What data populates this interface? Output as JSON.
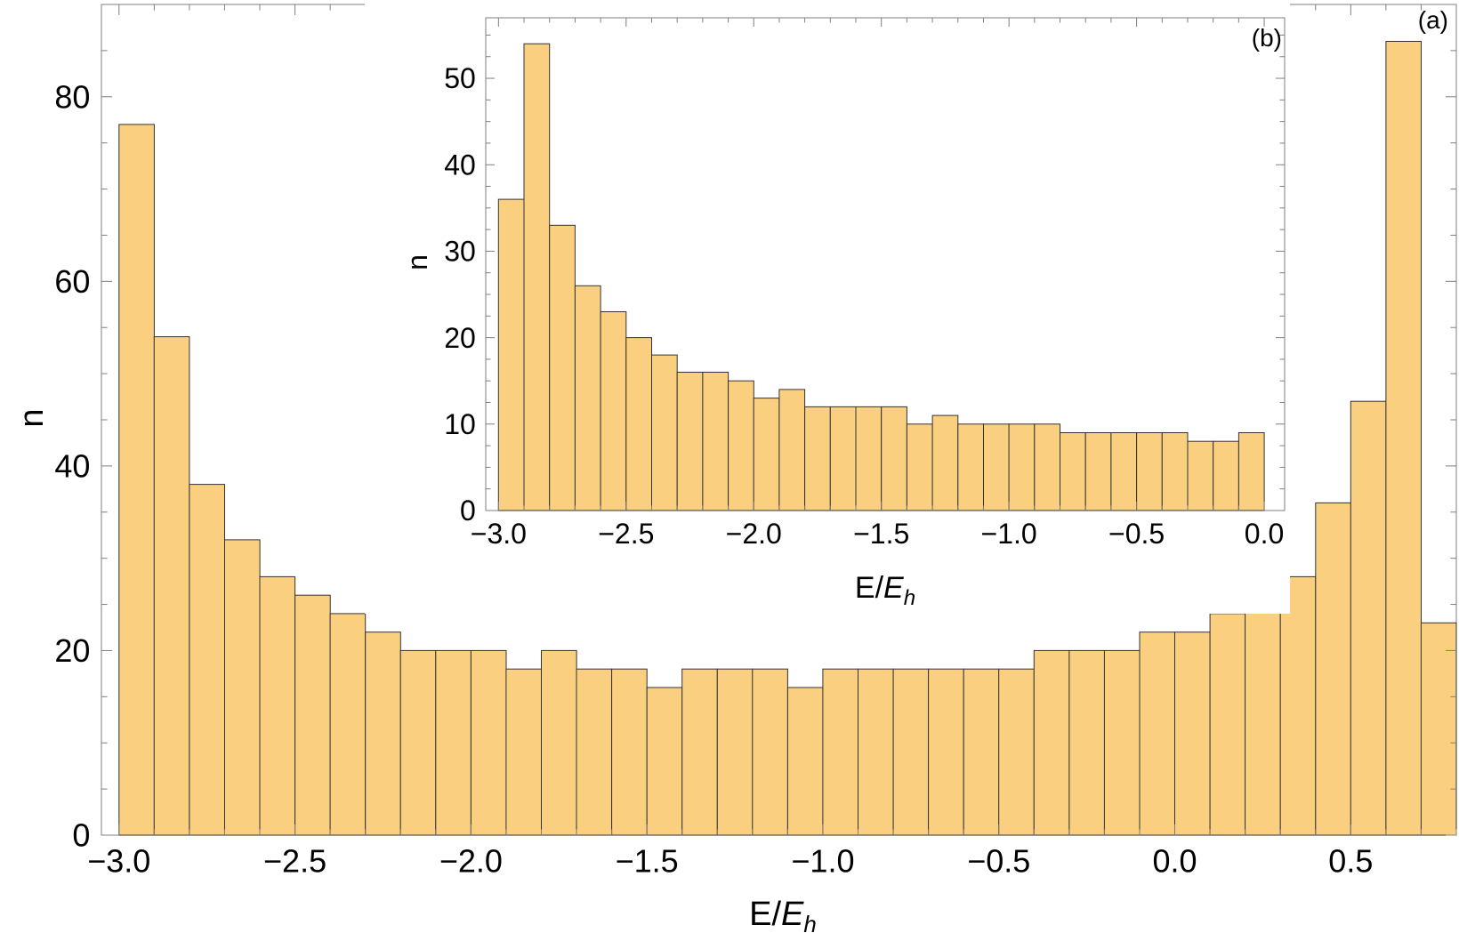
{
  "chart_data": [
    {
      "panel": "(a)",
      "type": "bar",
      "bin_width": 0.1,
      "x_bin_starts": [
        -3.0,
        -2.9,
        -2.8,
        -2.7,
        -2.6,
        -2.5,
        -2.4,
        -2.3,
        -2.2,
        -2.1,
        -2.0,
        -1.9,
        -1.8,
        -1.7,
        -1.6,
        -1.5,
        -1.4,
        -1.3,
        -1.2,
        -1.1,
        -1.0,
        -0.9,
        -0.8,
        -0.7,
        -0.6,
        -0.5,
        -0.4,
        -0.3,
        -0.2,
        -0.1,
        0.0,
        0.1,
        0.2,
        0.3,
        0.4,
        0.5,
        0.6,
        0.7
      ],
      "values": [
        77,
        54,
        38,
        32,
        28,
        26,
        24,
        22,
        20,
        20,
        20,
        18,
        20,
        18,
        18,
        16,
        18,
        18,
        18,
        16,
        18,
        18,
        18,
        18,
        18,
        18,
        20,
        20,
        20,
        22,
        22,
        24,
        28,
        28,
        36,
        47,
        86,
        23
      ],
      "xlim": [
        -3.05,
        0.8
      ],
      "ylim": [
        0,
        90
      ],
      "xticks": [
        -3.0,
        -2.5,
        -2.0,
        -1.5,
        -1.0,
        -0.5,
        0.0,
        0.5
      ],
      "xtick_labels": [
        "−3.0",
        "−2.5",
        "−2.0",
        "−1.5",
        "−1.0",
        "−0.5",
        "0.0",
        "0.5"
      ],
      "yticks": [
        0,
        20,
        40,
        60,
        80
      ],
      "ytick_labels": [
        "0",
        "20",
        "40",
        "60",
        "80"
      ],
      "xlabel_main": "E/",
      "xlabel_italic": "E",
      "xlabel_sub": "h",
      "ylabel": "n",
      "bar_color": "#fad080"
    },
    {
      "panel": "(b)",
      "type": "bar",
      "bin_width": 0.1,
      "x_bin_starts": [
        -3.0,
        -2.9,
        -2.8,
        -2.7,
        -2.6,
        -2.5,
        -2.4,
        -2.3,
        -2.2,
        -2.1,
        -2.0,
        -1.9,
        -1.8,
        -1.7,
        -1.6,
        -1.5,
        -1.4,
        -1.3,
        -1.2,
        -1.1,
        -1.0,
        -0.9,
        -0.8,
        -0.7,
        -0.6,
        -0.5,
        -0.4,
        -0.3,
        -0.2,
        -0.1
      ],
      "values": [
        36,
        54,
        33,
        26,
        23,
        20,
        18,
        16,
        16,
        15,
        13,
        14,
        12,
        12,
        12,
        12,
        10,
        11,
        10,
        10,
        10,
        10,
        9,
        9,
        9,
        9,
        9,
        8,
        8,
        9
      ],
      "xlim": [
        -3.05,
        0.08
      ],
      "ylim": [
        0,
        57
      ],
      "xticks": [
        -3.0,
        -2.5,
        -2.0,
        -1.5,
        -1.0,
        -0.5,
        0.0
      ],
      "xtick_labels": [
        "−3.0",
        "−2.5",
        "−2.0",
        "−1.5",
        "−1.0",
        "−0.5",
        "0.0"
      ],
      "yticks": [
        0,
        10,
        20,
        30,
        40,
        50
      ],
      "ytick_labels": [
        "0",
        "10",
        "20",
        "30",
        "40",
        "50"
      ],
      "xlabel_main": "E/",
      "xlabel_italic": "E",
      "xlabel_sub": "h",
      "ylabel": "n",
      "bar_color": "#fad080"
    }
  ]
}
